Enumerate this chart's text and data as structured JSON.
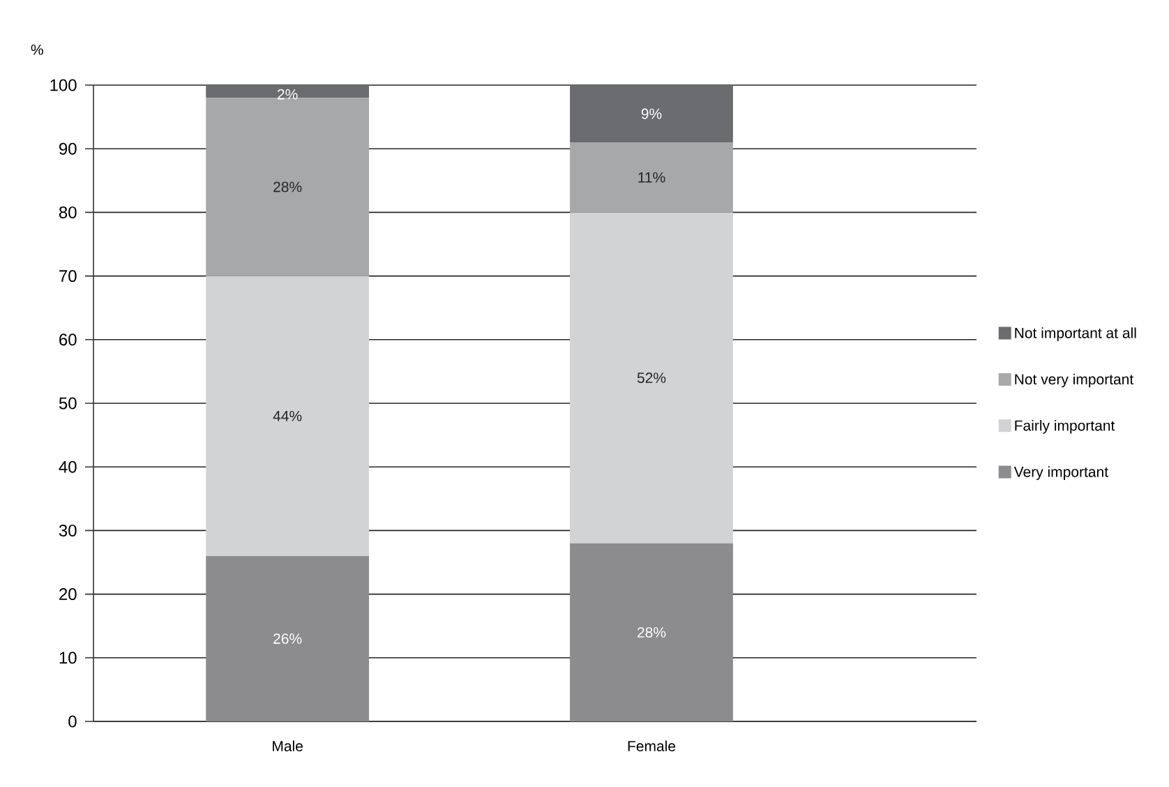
{
  "chart_data": {
    "type": "bar",
    "stacked": true,
    "ylabel": "%",
    "categories": [
      "Male",
      "Female"
    ],
    "series": [
      {
        "name": "Very important",
        "color": "#8c8c8e",
        "values": [
          26,
          28
        ],
        "value_labels": [
          "26%",
          "28%"
        ]
      },
      {
        "name": "Fairly important",
        "color": "#d2d3d5",
        "values": [
          44,
          52
        ],
        "value_labels": [
          "44%",
          "52%"
        ]
      },
      {
        "name": "Not very important",
        "color": "#a7a8aa",
        "values": [
          28,
          11
        ],
        "value_labels": [
          "28%",
          "11%"
        ]
      },
      {
        "name": "Not important at all",
        "color": "#6b6c70",
        "values": [
          2,
          9
        ],
        "value_labels": [
          "2%",
          "9%"
        ]
      }
    ],
    "ylim": [
      0,
      100
    ],
    "yticks": [
      0,
      10,
      20,
      30,
      40,
      50,
      60,
      70,
      80,
      90,
      100
    ],
    "grid": "y",
    "legend": "right"
  }
}
